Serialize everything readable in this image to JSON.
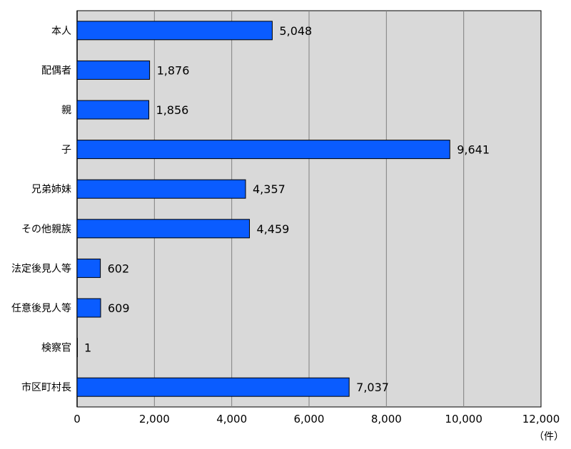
{
  "chart_data": {
    "type": "bar",
    "orientation": "horizontal",
    "categories": [
      "本人",
      "配偶者",
      "親",
      "子",
      "兄弟姉妹",
      "その他親族",
      "法定後見人等",
      "任意後見人等",
      "検察官",
      "市区町村長"
    ],
    "values": [
      5048,
      1876,
      1856,
      9641,
      4357,
      4459,
      602,
      609,
      1,
      7037
    ],
    "value_labels": [
      "5,048",
      "1,876",
      "1,856",
      "9,641",
      "4,357",
      "4,459",
      "602",
      "609",
      "1",
      "7,037"
    ],
    "xlim": [
      0,
      12000
    ],
    "xticks": [
      0,
      2000,
      4000,
      6000,
      8000,
      10000,
      12000
    ],
    "xtick_labels": [
      "0",
      "2,000",
      "4,000",
      "6,000",
      "8,000",
      "10,000",
      "12,000"
    ],
    "unit": "（件）",
    "grid": true,
    "colors": {
      "bar": "#0a5cff",
      "plot_bg": "#d9d9d9",
      "grid": "#808080"
    }
  }
}
